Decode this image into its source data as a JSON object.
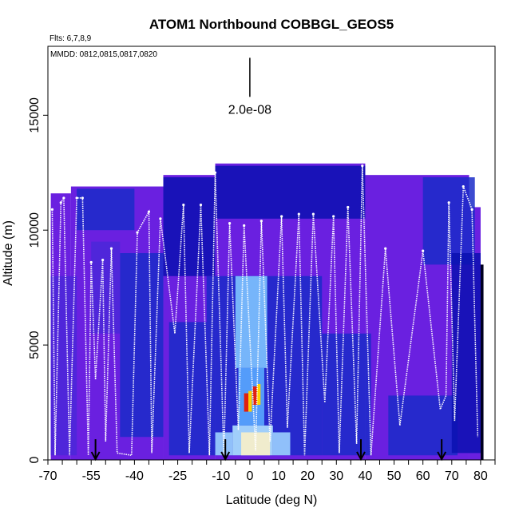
{
  "chart_data": {
    "type": "heatmap",
    "title": "ATOM1 Northbound COBBGL_GEOS5",
    "flights_note": "Flts: 6,7,8,9",
    "dates_note": "MMDD: 0812,0815,0817,0820",
    "xlabel": "Latitude (deg N)",
    "ylabel": "Altitude (m)",
    "xlim": [
      -70,
      85
    ],
    "ylim": [
      0,
      18000
    ],
    "x_ticks": [
      -70,
      -55,
      -40,
      -25,
      -10,
      0,
      10,
      20,
      30,
      40,
      50,
      60,
      70,
      80
    ],
    "y_ticks": [
      0,
      5000,
      10000,
      15000
    ],
    "scale_bar_label": "2.0e-08",
    "scale_bar_latitude": 0,
    "scale_bar_altitude_range": [
      15800,
      17500
    ],
    "arrow_latitudes": [
      -53.5,
      -8.5,
      38.5,
      66.5
    ],
    "colors": {
      "background_purple": "#6a20e0",
      "mid_blue": "#1a2cc8",
      "dark_blue": "#0a10b0",
      "light_blue": "#7fc4ff",
      "flight_track": "#ffffff"
    },
    "curtain_tops": [
      {
        "lat_range": [
          -69,
          -62
        ],
        "top": 11600
      },
      {
        "lat_range": [
          -62,
          -30
        ],
        "top": 11900
      },
      {
        "lat_range": [
          -30,
          -12
        ],
        "top": 12400
      },
      {
        "lat_range": [
          -12,
          40
        ],
        "top": 12900
      },
      {
        "lat_range": [
          40,
          76
        ],
        "top": 12400
      },
      {
        "lat_range": [
          76,
          80
        ],
        "top": 11000
      }
    ],
    "flight_tops": [
      {
        "lat": -68.5,
        "alt": 10900
      },
      {
        "lat": -65.5,
        "alt": 11200
      },
      {
        "lat": -64.5,
        "alt": 11400
      },
      {
        "lat": -60,
        "alt": 11400
      },
      {
        "lat": -58,
        "alt": 11400
      },
      {
        "lat": -55,
        "alt": 8600
      },
      {
        "lat": -51,
        "alt": 8700
      },
      {
        "lat": -48,
        "alt": 9200
      },
      {
        "lat": -39,
        "alt": 9900
      },
      {
        "lat": -35,
        "alt": 10800
      },
      {
        "lat": -31,
        "alt": 10500
      },
      {
        "lat": -23,
        "alt": 11100
      },
      {
        "lat": -17,
        "alt": 11100
      },
      {
        "lat": -12,
        "alt": 12500
      },
      {
        "lat": -7,
        "alt": 10300
      },
      {
        "lat": -2,
        "alt": 10200
      },
      {
        "lat": 4,
        "alt": 10400
      },
      {
        "lat": 11,
        "alt": 10600
      },
      {
        "lat": 17,
        "alt": 10700
      },
      {
        "lat": 22,
        "alt": 10700
      },
      {
        "lat": 29,
        "alt": 10600
      },
      {
        "lat": 34,
        "alt": 11000
      },
      {
        "lat": 39,
        "alt": 12800
      },
      {
        "lat": 47,
        "alt": 9200
      },
      {
        "lat": 60,
        "alt": 9100
      },
      {
        "lat": 69,
        "alt": 11200
      },
      {
        "lat": 74,
        "alt": 11900
      },
      {
        "lat": 77,
        "alt": 10900
      }
    ],
    "flight_bottoms": [
      {
        "lat": -67.5,
        "alt": 200
      },
      {
        "lat": -62.5,
        "alt": 200
      },
      {
        "lat": -56,
        "alt": 200
      },
      {
        "lat": -53.5,
        "alt": 3500
      },
      {
        "lat": -50,
        "alt": 800
      },
      {
        "lat": -46,
        "alt": 300
      },
      {
        "lat": -41,
        "alt": 200
      },
      {
        "lat": -34,
        "alt": 300
      },
      {
        "lat": -26,
        "alt": 5500
      },
      {
        "lat": -21,
        "alt": 300
      },
      {
        "lat": -14,
        "alt": 200
      },
      {
        "lat": -9,
        "alt": 200
      },
      {
        "lat": -4,
        "alt": 1300
      },
      {
        "lat": 2,
        "alt": 400
      },
      {
        "lat": 7,
        "alt": 800
      },
      {
        "lat": 13,
        "alt": 1400
      },
      {
        "lat": 19,
        "alt": 200
      },
      {
        "lat": 26,
        "alt": 2500
      },
      {
        "lat": 31,
        "alt": 300
      },
      {
        "lat": 37,
        "alt": 700
      },
      {
        "lat": 42,
        "alt": 200
      },
      {
        "lat": 52,
        "alt": 1500
      },
      {
        "lat": 66,
        "alt": 2200
      },
      {
        "lat": 68,
        "alt": 2800
      },
      {
        "lat": 71,
        "alt": 1700
      },
      {
        "lat": 79,
        "alt": 1000
      }
    ],
    "hotspots": [
      {
        "lat": 0,
        "alt": 2100,
        "value": "high"
      },
      {
        "lat": 3,
        "alt": 2400,
        "value": "high"
      }
    ]
  }
}
